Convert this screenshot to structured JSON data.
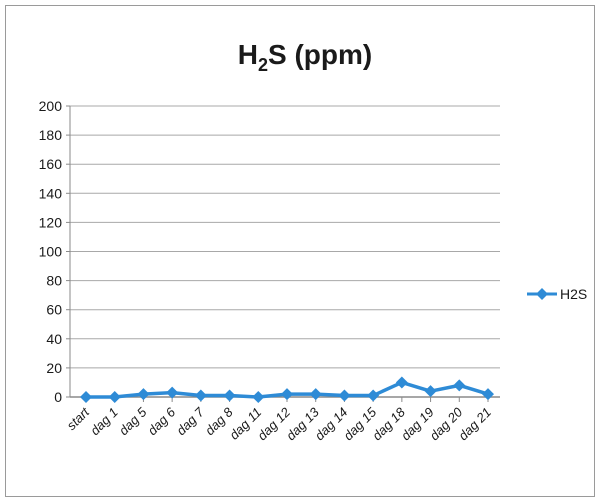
{
  "chart_data": {
    "type": "line",
    "title": {
      "main": "H",
      "subscript": "2",
      "rest": "S (ppm)"
    },
    "xlabel": "",
    "ylabel": "",
    "ylim": [
      0,
      200
    ],
    "ytick_step": 20,
    "y_ticks": [
      "0",
      "20",
      "40",
      "60",
      "80",
      "100",
      "120",
      "140",
      "160",
      "180",
      "200"
    ],
    "grid": "horizontal",
    "legend": "right",
    "categories": [
      "start",
      "dag 1",
      "dag 5",
      "dag 6",
      "dag 7",
      "dag 8",
      "dag 11",
      "dag 12",
      "dag 13",
      "dag 14",
      "dag 15",
      "dag 18",
      "dag 19",
      "dag 20",
      "dag 21"
    ],
    "series": [
      {
        "name": "H2S",
        "color": "#2e8bd6",
        "values": [
          0,
          0,
          2,
          3,
          1,
          1,
          0,
          2,
          2,
          1,
          1,
          10,
          4,
          8,
          2
        ]
      }
    ]
  }
}
